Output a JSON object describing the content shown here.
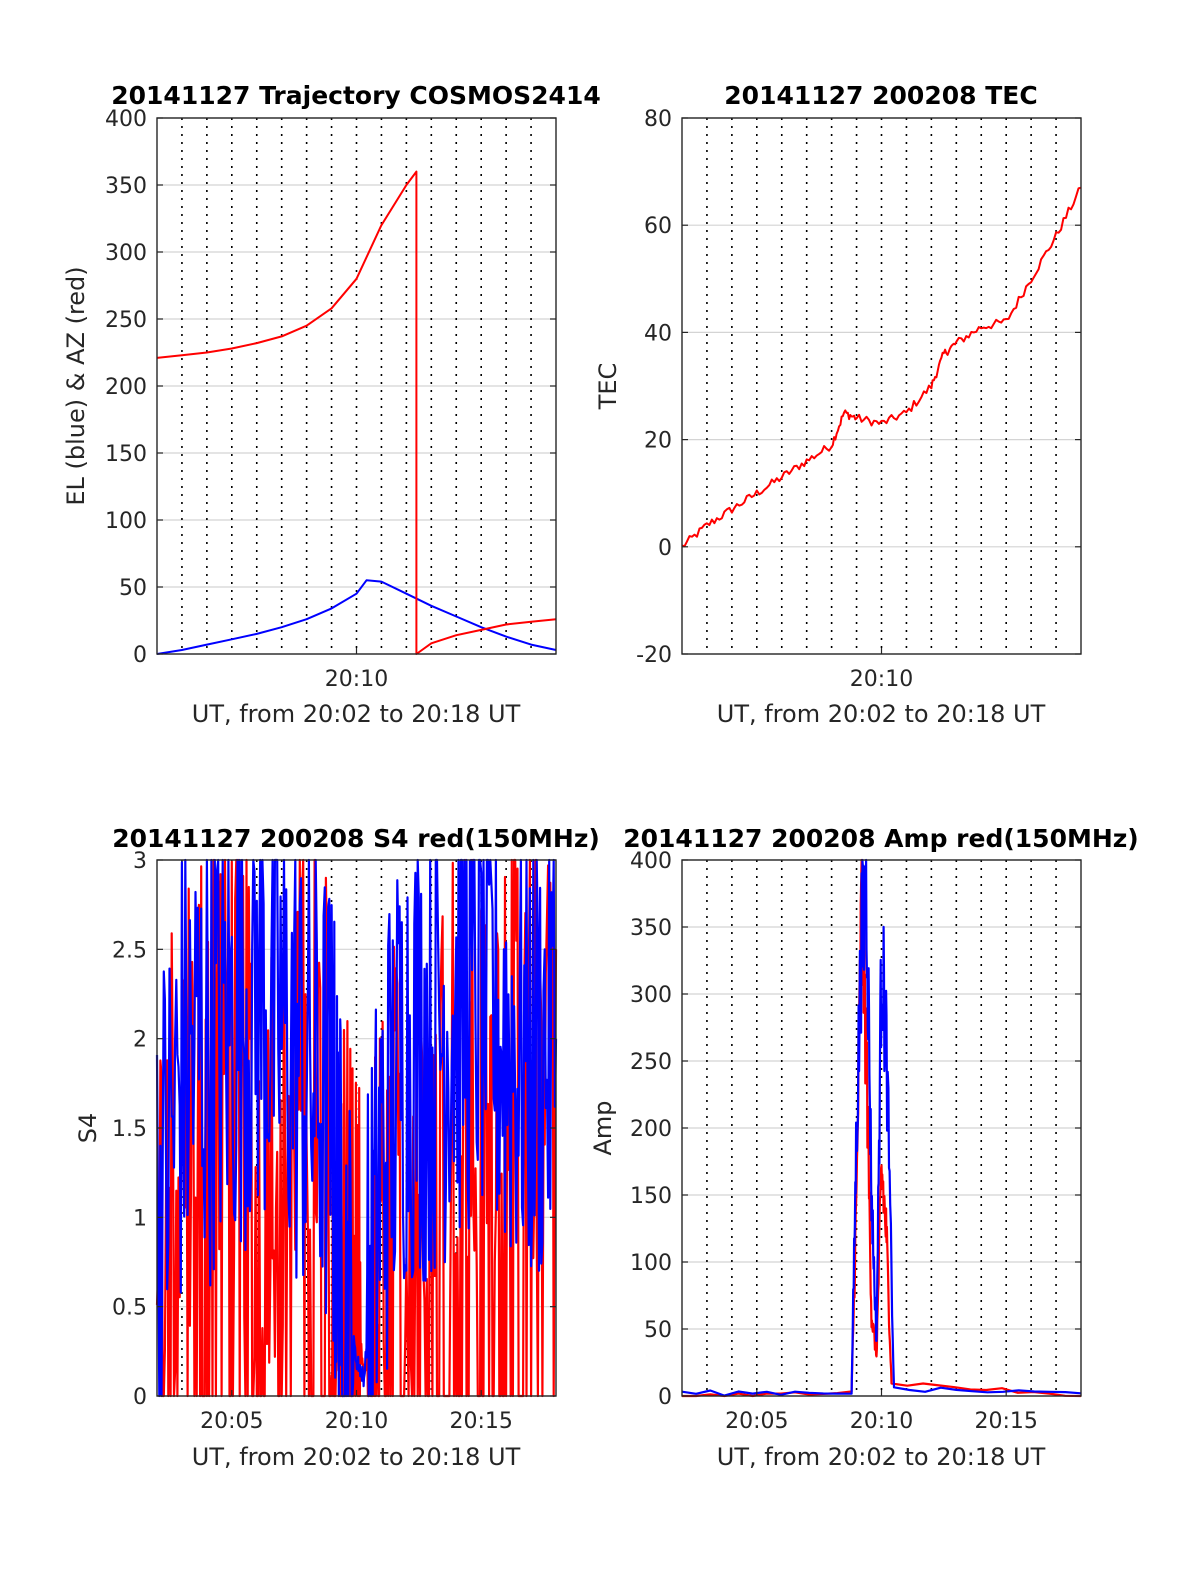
{
  "colors": {
    "red": "#ff0000",
    "blue": "#0000ff",
    "grid": "#d4d4d4",
    "axis": "#262626"
  },
  "chart_data": [
    {
      "type": "line",
      "title": "20141127 Trajectory COSMOS2414",
      "xlabel": "UT, from 20:02 to 20:18 UT",
      "ylabel": "EL (blue) & AZ (red)",
      "xlim": [
        "20:02",
        "20:18"
      ],
      "ylim": [
        0,
        400
      ],
      "yticks": [
        "0",
        "50",
        "100",
        "150",
        "200",
        "250",
        "300",
        "350",
        "400"
      ],
      "xtick_labels": [
        "20:10"
      ],
      "grid": true,
      "series": [
        {
          "color": "blue",
          "x": [
            "20:02",
            "20:03",
            "20:04",
            "20:05",
            "20:06",
            "20:07",
            "20:08",
            "20:09",
            "20:10",
            "20:10.4",
            "20:11",
            "20:12",
            "20:13",
            "20:14",
            "20:15",
            "20:16",
            "20:17",
            "20:18"
          ],
          "y": [
            0,
            3,
            7,
            11,
            15,
            20,
            26,
            34,
            45,
            55,
            54,
            45,
            36,
            28,
            20,
            13,
            7,
            3
          ]
        },
        {
          "color": "red",
          "x": [
            "20:02",
            "20:03",
            "20:04",
            "20:05",
            "20:06",
            "20:07",
            "20:08",
            "20:09",
            "20:10",
            "20:11",
            "20:12",
            "20:12.4",
            "20:12.4",
            "20:13",
            "20:14",
            "20:15",
            "20:16",
            "20:17",
            "20:18"
          ],
          "y": [
            221,
            223,
            225,
            228,
            232,
            237,
            245,
            258,
            280,
            320,
            350,
            360,
            0,
            8,
            14,
            18,
            22,
            24,
            26
          ]
        }
      ]
    },
    {
      "type": "line",
      "title": "20141127 200208 TEC",
      "xlabel": "UT, from 20:02 to 20:18 UT",
      "ylabel": "TEC",
      "xlim": [
        "20:02",
        "20:18"
      ],
      "ylim": [
        -20,
        80
      ],
      "yticks": [
        "-20",
        "0",
        "20",
        "40",
        "60",
        "80"
      ],
      "xtick_labels": [
        "20:10"
      ],
      "grid": true,
      "series": [
        {
          "color": "red",
          "x": [
            "20:02",
            "20:03",
            "20:04",
            "20:05",
            "20:06",
            "20:07",
            "20:08",
            "20:08.5",
            "20:09",
            "20:10",
            "20:11",
            "20:12",
            "20:12.5",
            "20:13",
            "20:14",
            "20:15",
            "20:16",
            "20:17",
            "20:18"
          ],
          "y": [
            0,
            4,
            7,
            10,
            13,
            16,
            19,
            25,
            24,
            23,
            25,
            30,
            36,
            38,
            41,
            42,
            50,
            58,
            67
          ]
        }
      ]
    },
    {
      "type": "line",
      "title": "20141127 200208 S4 red(150MHz)",
      "xlabel": "UT, from 20:02 to 20:18 UT",
      "ylabel": "S4",
      "xlim": [
        "20:02",
        "20:18"
      ],
      "ylim": [
        0,
        3
      ],
      "yticks": [
        "0",
        "0.5",
        "1",
        "1.5",
        "2",
        "2.5",
        "3"
      ],
      "xtick_labels": [
        "20:05",
        "20:10",
        "20:15"
      ],
      "grid": true,
      "series": [
        {
          "color": "red",
          "x": [
            "20:02",
            "20:03",
            "20:04",
            "20:05",
            "20:06",
            "20:07",
            "20:08",
            "20:09",
            "20:09.5",
            "20:10",
            "20:10.3",
            "20:11",
            "20:12",
            "20:13",
            "20:14",
            "20:15",
            "20:16",
            "20:17",
            "20:18"
          ],
          "y": [
            1.2,
            1.5,
            2.2,
            2.0,
            1.5,
            1.6,
            2.0,
            1.5,
            1.2,
            0.5,
            0.1,
            1.0,
            1.4,
            2.0,
            2.0,
            1.5,
            2.5,
            2.0,
            2.5
          ]
        },
        {
          "color": "blue",
          "x": [
            "20:02",
            "20:03",
            "20:04",
            "20:05",
            "20:06",
            "20:07",
            "20:08",
            "20:09",
            "20:09.4",
            "20:10",
            "20:10.3",
            "20:11",
            "20:12",
            "20:13",
            "20:14",
            "20:15",
            "20:16",
            "20:17",
            "20:18"
          ],
          "y": [
            1.0,
            1.8,
            2.0,
            2.1,
            2.3,
            2.1,
            1.8,
            1.6,
            0.7,
            0.2,
            0.1,
            1.3,
            2.0,
            2.0,
            2.2,
            2.3,
            2.0,
            1.9,
            2.0
          ]
        }
      ]
    },
    {
      "type": "line",
      "title": "20141127 200208 Amp red(150MHz)",
      "xlabel": "UT, from 20:02 to 20:18 UT",
      "ylabel": "Amp",
      "xlim": [
        "20:02",
        "20:18"
      ],
      "ylim": [
        0,
        400
      ],
      "yticks": [
        "0",
        "50",
        "100",
        "150",
        "200",
        "250",
        "300",
        "350",
        "400"
      ],
      "xtick_labels": [
        "20:05",
        "20:10",
        "20:15"
      ],
      "grid": true,
      "series": [
        {
          "color": "red",
          "x": [
            "20:02",
            "20:08.8",
            "20:09.0",
            "20:09.2",
            "20:09.4",
            "20:09.6",
            "20:09.8",
            "20:10.0",
            "20:10.2",
            "20:10.4",
            "20:18"
          ],
          "y": [
            0,
            2,
            150,
            370,
            250,
            60,
            30,
            170,
            120,
            10,
            0
          ]
        },
        {
          "color": "blue",
          "x": [
            "20:02",
            "20:08.8",
            "20:09.0",
            "20:09.2",
            "20:09.4",
            "20:09.6",
            "20:09.8",
            "20:10.0",
            "20:10.2",
            "20:10.5",
            "20:18"
          ],
          "y": [
            2,
            3,
            200,
            340,
            382,
            150,
            40,
            330,
            260,
            5,
            2
          ]
        }
      ]
    }
  ]
}
